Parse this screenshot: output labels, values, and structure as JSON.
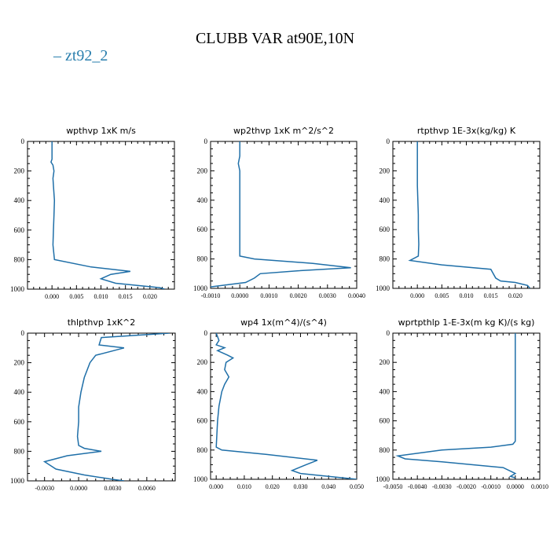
{
  "figure": {
    "title": "CLUBB VAR at90E,10N",
    "legend": {
      "label": "zt92_2",
      "color": "#1f6fa8",
      "position": "top-left"
    }
  },
  "chart_data": [
    {
      "type": "line",
      "title": "wpthvp   1xK m/s",
      "series": [
        {
          "name": "zt92_2",
          "x": [
            0.0,
            0.0,
            0.0,
            0.0,
            -0.0002,
            0.0002,
            0.0004,
            0.0002,
            0.0003,
            0.0005,
            0.0004,
            0.0003,
            0.0002,
            0.0005,
            0.008,
            0.016,
            0.012,
            0.01,
            0.013,
            0.022,
            0.023
          ],
          "y": [
            0,
            50,
            100,
            120,
            140,
            160,
            200,
            250,
            300,
            400,
            500,
            600,
            700,
            800,
            850,
            880,
            900,
            930,
            960,
            990,
            1000
          ]
        }
      ],
      "xlim": [
        -0.005,
        0.025
      ],
      "xticks": [
        "0.000",
        "0.005",
        "0.010",
        "0.015",
        "0.020"
      ],
      "ylim": [
        0,
        1000
      ],
      "yticks": [
        "0",
        "200",
        "400",
        "600",
        "800",
        "1000"
      ],
      "y_inverted": true
    },
    {
      "type": "line",
      "title": "wp2thvp   1xK m^2/s^2",
      "series": [
        {
          "name": "zt92_2",
          "x": [
            0.0,
            0.0,
            0.0,
            -5e-05,
            0.0,
            0.0,
            0.0,
            0.0,
            0.0,
            0.0005,
            0.0025,
            0.0038,
            0.002,
            0.0007,
            0.0005,
            0.0002,
            -0.001
          ],
          "y": [
            0,
            50,
            100,
            150,
            200,
            300,
            400,
            600,
            780,
            800,
            830,
            860,
            880,
            900,
            930,
            960,
            990
          ]
        }
      ],
      "xlim": [
        -0.001,
        0.004
      ],
      "xticks": [
        "-0.0010",
        "0.0000",
        "0.0010",
        "0.0020",
        "0.0030",
        "0.0040"
      ],
      "ylim": [
        0,
        1000
      ],
      "yticks": [
        "0",
        "200",
        "400",
        "600",
        "800",
        "1000"
      ],
      "y_inverted": true
    },
    {
      "type": "line",
      "title": "rtpthvp   1E-3x(kg/kg) K",
      "series": [
        {
          "name": "zt92_2",
          "x": [
            0.0,
            0.0,
            0.0,
            0.0,
            0.0001,
            0.0002,
            0.0002,
            0.0003,
            0.0002,
            -0.0015,
            0.005,
            0.015,
            0.016,
            0.017,
            0.02,
            0.0225,
            0.023
          ],
          "y": [
            0,
            100,
            200,
            300,
            400,
            500,
            600,
            700,
            780,
            810,
            840,
            870,
            930,
            950,
            960,
            980,
            1000
          ]
        }
      ],
      "xlim": [
        -0.005,
        0.025
      ],
      "xticks": [
        "0.000",
        "0.005",
        "0.010",
        "0.015",
        "0.020"
      ],
      "ylim": [
        0,
        1000
      ],
      "yticks": [
        "0",
        "200",
        "400",
        "600",
        "800",
        "1000"
      ],
      "y_inverted": true
    },
    {
      "type": "line",
      "title": "thlpthvp   1xK^2",
      "series": [
        {
          "name": "zt92_2",
          "x": [
            0.008,
            0.002,
            0.0018,
            0.004,
            0.0015,
            0.001,
            0.0005,
            0.0002,
            0.0,
            0.0,
            -0.0001,
            0.0,
            0.0005,
            0.002,
            -0.001,
            -0.003,
            -0.002,
            0.0005,
            0.003,
            0.004
          ],
          "y": [
            0,
            30,
            80,
            100,
            150,
            200,
            300,
            400,
            500,
            600,
            700,
            760,
            780,
            800,
            830,
            870,
            920,
            960,
            990,
            1000
          ]
        }
      ],
      "xlim": [
        -0.0045,
        0.0085
      ],
      "xticks": [
        "-0.0030",
        "0.0000",
        "0.0030",
        "0.0060"
      ],
      "ylim": [
        0,
        1000
      ],
      "yticks": [
        "0",
        "200",
        "400",
        "600",
        "800",
        "1000"
      ],
      "y_inverted": true
    },
    {
      "type": "line",
      "title": "wp4   1x(m^4)/(s^4)",
      "series": [
        {
          "name": "zt92_2",
          "x": [
            0.0,
            0.001,
            0.0,
            0.003,
            0.0005,
            0.004,
            0.006,
            0.0035,
            0.003,
            0.0045,
            0.003,
            0.002,
            0.001,
            0.0005,
            0.0,
            0.002,
            0.018,
            0.036,
            0.032,
            0.027,
            0.03,
            0.045,
            0.05
          ],
          "y": [
            0,
            50,
            80,
            100,
            120,
            150,
            170,
            200,
            250,
            300,
            350,
            400,
            500,
            600,
            780,
            800,
            830,
            870,
            900,
            940,
            960,
            990,
            1000
          ]
        }
      ],
      "xlim": [
        -0.002,
        0.05
      ],
      "xticks": [
        "0.000",
        "0.010",
        "0.020",
        "0.030",
        "0.040",
        "0.050"
      ],
      "ylim": [
        0,
        1000
      ],
      "yticks": [
        "0",
        "200",
        "400",
        "600",
        "800",
        "1000"
      ],
      "y_inverted": true
    },
    {
      "type": "line",
      "title": "wprtpthlp   1-E-3x(m kg K)/(s kg)",
      "series": [
        {
          "name": "zt92_2",
          "x": [
            0.0,
            0.0,
            0.0,
            0.0,
            0.0,
            0.0,
            -0.0001,
            -0.001,
            -0.003,
            -0.0048,
            -0.0045,
            -0.003,
            -0.0005,
            0.0,
            -0.0002,
            0.0
          ],
          "y": [
            0,
            100,
            300,
            500,
            700,
            740,
            760,
            780,
            800,
            840,
            860,
            880,
            920,
            960,
            980,
            990
          ]
        }
      ],
      "xlim": [
        -0.005,
        0.001
      ],
      "xticks": [
        "-0.0050",
        "-0.0040",
        "-0.0030",
        "-0.0020",
        "-0.0010",
        "0.0000",
        "0.0010"
      ],
      "ylim": [
        0,
        1000
      ],
      "yticks": [
        "0",
        "200",
        "400",
        "600",
        "800",
        "1000"
      ],
      "y_inverted": true
    }
  ]
}
